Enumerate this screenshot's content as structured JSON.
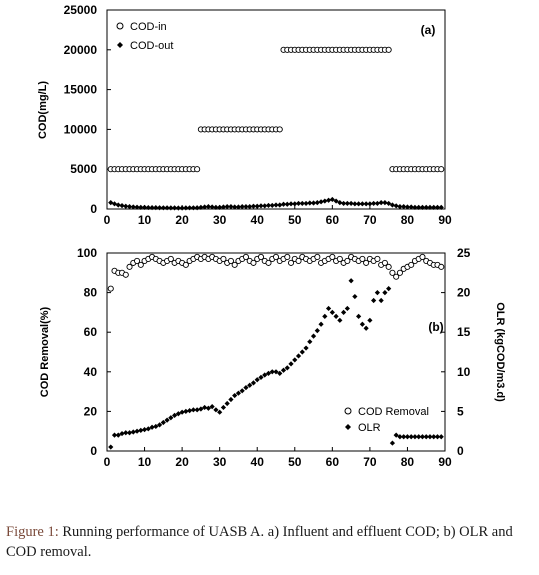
{
  "caption": {
    "label": "Figure 1:",
    "text": " Running performance of UASB A. a) Influent and effluent COD; b) OLR and COD removal."
  },
  "colors": {
    "marker": "#000000",
    "axis": "#000000",
    "caption_label": "#7a4a3a"
  },
  "chart_data": [
    {
      "panel": "(a)",
      "type": "scatter",
      "ylabel": "COD(mg/L)",
      "xlim": [
        0,
        90
      ],
      "ylim": [
        0,
        25000
      ],
      "xticks": [
        0,
        10,
        20,
        30,
        40,
        50,
        60,
        70,
        80,
        90
      ],
      "yticks": [
        0,
        5000,
        10000,
        15000,
        20000,
        25000
      ],
      "legend_position": "top-left",
      "series": [
        {
          "name": "COD-in",
          "marker": "open-circle",
          "segments": [
            {
              "x_start": 1,
              "x_end": 24,
              "y": 5000
            },
            {
              "x_start": 25,
              "x_end": 46,
              "y": 10000
            },
            {
              "x_start": 47,
              "x_end": 75,
              "y": 20000
            },
            {
              "x_start": 76,
              "x_end": 89,
              "y": 5000
            }
          ]
        },
        {
          "name": "COD-out",
          "marker": "filled-diamond",
          "x": [
            1,
            2,
            3,
            4,
            5,
            6,
            7,
            8,
            9,
            10,
            11,
            12,
            13,
            14,
            15,
            16,
            17,
            18,
            19,
            20,
            21,
            22,
            23,
            24,
            25,
            26,
            27,
            28,
            29,
            30,
            31,
            32,
            33,
            34,
            35,
            36,
            37,
            38,
            39,
            40,
            41,
            42,
            43,
            44,
            45,
            46,
            47,
            48,
            49,
            50,
            51,
            52,
            53,
            54,
            55,
            56,
            57,
            58,
            59,
            60,
            61,
            62,
            63,
            64,
            65,
            66,
            67,
            68,
            69,
            70,
            71,
            72,
            73,
            74,
            75,
            76,
            77,
            78,
            79,
            80,
            81,
            82,
            83,
            84,
            85,
            86,
            87,
            88,
            89
          ],
          "y": [
            800,
            650,
            500,
            420,
            350,
            300,
            260,
            230,
            200,
            200,
            180,
            170,
            170,
            160,
            150,
            150,
            140,
            140,
            130,
            130,
            140,
            150,
            150,
            160,
            200,
            250,
            300,
            250,
            200,
            200,
            250,
            300,
            300,
            250,
            250,
            300,
            300,
            300,
            350,
            350,
            400,
            400,
            450,
            450,
            500,
            500,
            600,
            600,
            650,
            650,
            700,
            700,
            700,
            750,
            750,
            800,
            900,
            1000,
            1100,
            1200,
            1000,
            800,
            700,
            700,
            700,
            650,
            650,
            650,
            650,
            650,
            700,
            700,
            800,
            800,
            700,
            500,
            400,
            300,
            300,
            250,
            250,
            200,
            200,
            200,
            200,
            200,
            200,
            200,
            200
          ]
        }
      ]
    },
    {
      "panel": "(b)",
      "type": "scatter",
      "ylabel": "COD Removal(%)",
      "y2label": "OLR (kgCOD/m3.d)",
      "xlim": [
        0,
        90
      ],
      "ylim": [
        0,
        100
      ],
      "y2lim": [
        0,
        25
      ],
      "xticks": [
        0,
        10,
        20,
        30,
        40,
        50,
        60,
        70,
        80,
        90
      ],
      "yticks": [
        0,
        20,
        40,
        60,
        80,
        100
      ],
      "y2ticks": [
        0,
        5,
        10,
        15,
        20,
        25
      ],
      "legend_position": "bottom-right",
      "series": [
        {
          "name": "COD Removal",
          "axis": "left",
          "marker": "open-circle",
          "x": [
            1,
            2,
            3,
            4,
            5,
            6,
            7,
            8,
            9,
            10,
            11,
            12,
            13,
            14,
            15,
            16,
            17,
            18,
            19,
            20,
            21,
            22,
            23,
            24,
            25,
            26,
            27,
            28,
            29,
            30,
            31,
            32,
            33,
            34,
            35,
            36,
            37,
            38,
            39,
            40,
            41,
            42,
            43,
            44,
            45,
            46,
            47,
            48,
            49,
            50,
            51,
            52,
            53,
            54,
            55,
            56,
            57,
            58,
            59,
            60,
            61,
            62,
            63,
            64,
            65,
            66,
            67,
            68,
            69,
            70,
            71,
            72,
            73,
            74,
            75,
            76,
            77,
            78,
            79,
            80,
            81,
            82,
            83,
            84,
            85,
            86,
            87,
            88,
            89
          ],
          "y": [
            82,
            91,
            90,
            90,
            89,
            93,
            95,
            96,
            94,
            96,
            97,
            98,
            97,
            96,
            95,
            96,
            97,
            95,
            96,
            95,
            94,
            96,
            97,
            98,
            97,
            98,
            97,
            98,
            97,
            96,
            97,
            95,
            96,
            94,
            96,
            97,
            98,
            96,
            95,
            97,
            98,
            96,
            95,
            97,
            98,
            96,
            97,
            98,
            95,
            97,
            96,
            98,
            97,
            96,
            97,
            98,
            95,
            96,
            97,
            98,
            96,
            97,
            95,
            96,
            98,
            97,
            96,
            97,
            95,
            97,
            96,
            97,
            94,
            95,
            93,
            90,
            88,
            90,
            92,
            93,
            94,
            96,
            97,
            98,
            96,
            95,
            94,
            94,
            93
          ]
        },
        {
          "name": "OLR",
          "axis": "right",
          "marker": "filled-diamond",
          "x": [
            1,
            2,
            3,
            4,
            5,
            6,
            7,
            8,
            9,
            10,
            11,
            12,
            13,
            14,
            15,
            16,
            17,
            18,
            19,
            20,
            21,
            22,
            23,
            24,
            25,
            26,
            27,
            28,
            29,
            30,
            31,
            32,
            33,
            34,
            35,
            36,
            37,
            38,
            39,
            40,
            41,
            42,
            43,
            44,
            45,
            46,
            47,
            48,
            49,
            50,
            51,
            52,
            53,
            54,
            55,
            56,
            57,
            58,
            59,
            60,
            61,
            62,
            63,
            64,
            65,
            66,
            67,
            68,
            69,
            70,
            71,
            72,
            73,
            74,
            75,
            76,
            77,
            78,
            79,
            80,
            81,
            82,
            83,
            84,
            85,
            86,
            87,
            88,
            89
          ],
          "y": [
            0.5,
            2,
            2,
            2.2,
            2.3,
            2.3,
            2.4,
            2.5,
            2.6,
            2.7,
            2.8,
            3,
            3.1,
            3.3,
            3.6,
            3.9,
            4.2,
            4.5,
            4.7,
            4.9,
            5,
            5.1,
            5.2,
            5.2,
            5.3,
            5.5,
            5.4,
            5.6,
            5.2,
            4.9,
            5.5,
            6,
            6.5,
            7,
            7.3,
            7.6,
            8,
            8.3,
            8.6,
            9,
            9.3,
            9.6,
            9.8,
            10,
            10,
            9.8,
            10.2,
            10.5,
            11,
            11.5,
            12,
            12.5,
            13,
            13.8,
            14.5,
            15.2,
            16,
            17,
            18,
            17.5,
            17,
            16.5,
            17.5,
            18,
            21.5,
            19.5,
            17,
            16,
            15.5,
            16.5,
            19,
            20,
            19,
            20,
            20.5,
            1,
            2,
            1.8,
            1.8,
            1.8,
            1.8,
            1.8,
            1.8,
            1.8,
            1.8,
            1.8,
            1.8,
            1.8,
            1.8
          ]
        }
      ]
    }
  ]
}
